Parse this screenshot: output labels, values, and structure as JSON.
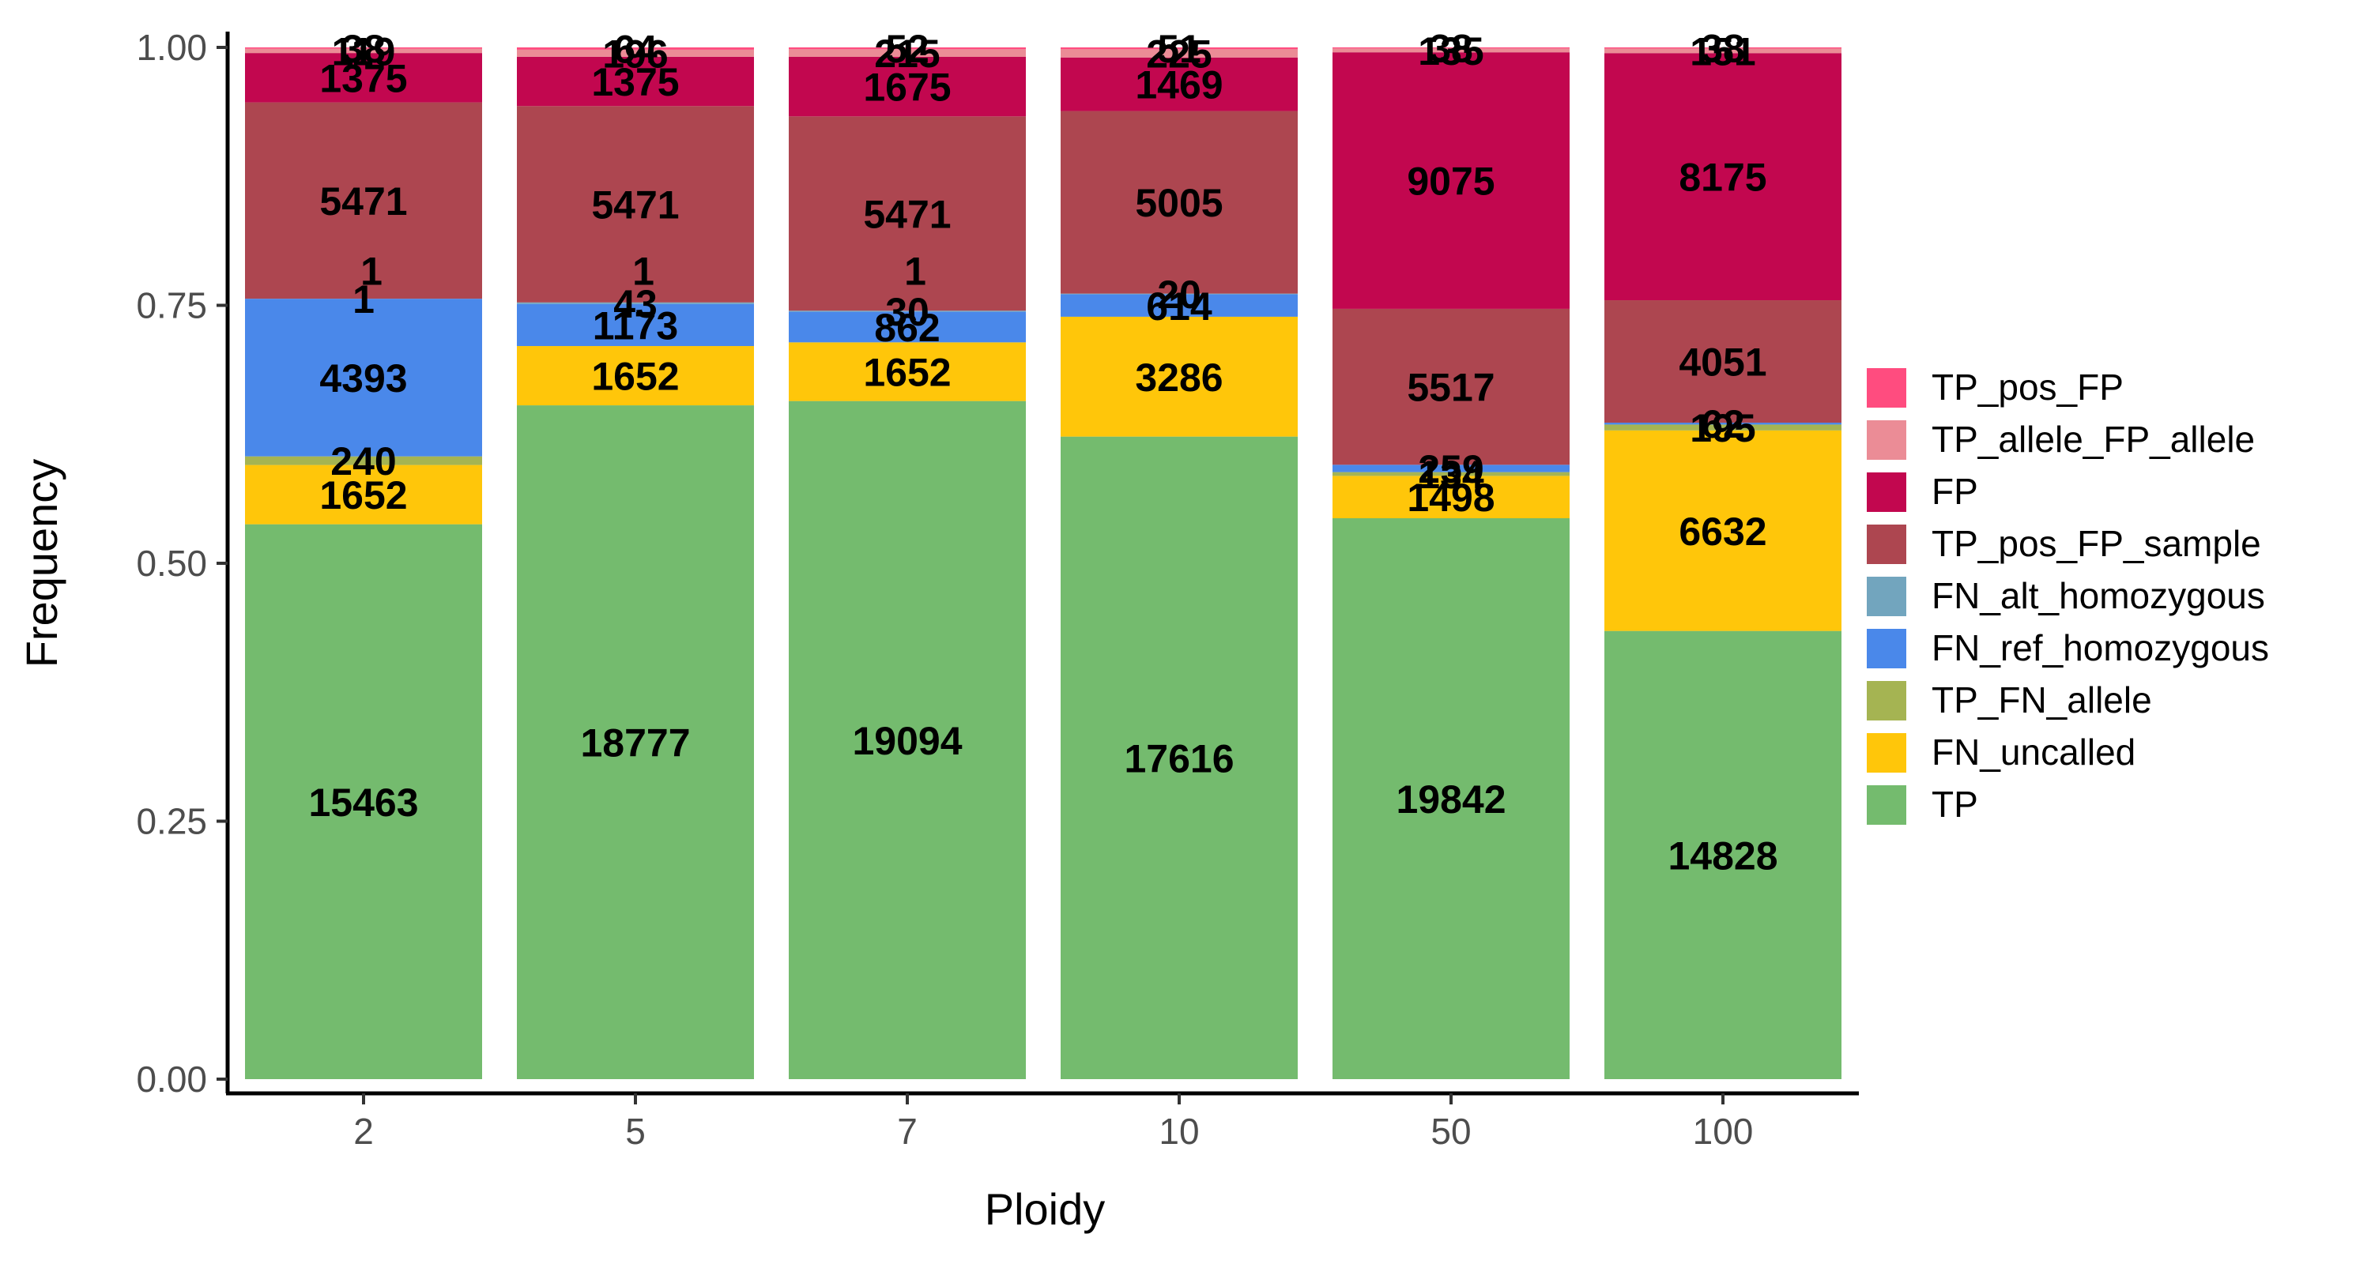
{
  "chart_data": {
    "type": "bar",
    "stacked": true,
    "normalized": true,
    "xlabel": "Ploidy",
    "ylabel": "Frequency",
    "categories": [
      "2",
      "5",
      "7",
      "10",
      "50",
      "100"
    ],
    "ylim": [
      0,
      1
    ],
    "yticks": [
      0.0,
      0.25,
      0.5,
      0.75,
      1.0
    ],
    "ytick_labels": [
      "0.00",
      "0.25",
      "0.50",
      "0.75",
      "1.00"
    ],
    "legend_position": "right",
    "grid": false,
    "series": [
      {
        "name": "TP",
        "color": "#74BB6E",
        "values": [
          15463,
          18777,
          19094,
          17616,
          19842,
          14828
        ],
        "labels": [
          "15463",
          "18777",
          "19094",
          "17616",
          "19842",
          "14828"
        ]
      },
      {
        "name": "FN_uncalled",
        "color": "#FFC60A",
        "values": [
          1652,
          1652,
          1652,
          3286,
          1498,
          6632
        ],
        "labels": [
          "1652",
          "1652",
          "1652",
          "3286",
          "1498",
          "6632"
        ]
      },
      {
        "name": "TP_FN_allele",
        "color": "#A5B452",
        "values": [
          240,
          0,
          0,
          0,
          134,
          195
        ],
        "labels": [
          "240",
          "",
          "",
          "",
          "134",
          "195"
        ]
      },
      {
        "name": "FN_ref_homozygous",
        "color": "#4A88EA",
        "values": [
          4393,
          1173,
          862,
          614,
          259,
          62
        ],
        "labels": [
          "4393",
          "1173",
          "862",
          "614",
          "259",
          "62"
        ]
      },
      {
        "name": "FN_alt_homozygous",
        "color": "#72A5BE",
        "values": [
          1,
          43,
          30,
          20,
          0,
          0
        ],
        "labels": [
          "1",
          "43",
          "30",
          "20",
          "",
          ""
        ]
      },
      {
        "name": "TP_pos_FP_sample",
        "color": "#AD4650",
        "values": [
          5471,
          5471,
          5471,
          5005,
          5517,
          4051
        ],
        "labels": [
          "5471",
          "5471",
          "5471",
          "5005",
          "5517",
          "4051"
        ]
      },
      {
        "name": "FP",
        "color": "#C2074F",
        "values": [
          1375,
          1375,
          1675,
          1469,
          9075,
          8175
        ],
        "labels": [
          "1375",
          "1375",
          "1675",
          "1469",
          "9075",
          "8175"
        ]
      },
      {
        "name": "TP_allele_FP_allele",
        "color": "#EB8C96",
        "values": [
          119,
          196,
          215,
          225,
          135,
          151
        ],
        "labels": [
          "119",
          "196",
          "215",
          "225",
          "135",
          "151"
        ]
      },
      {
        "name": "TP_pos_FP",
        "color": "#FF4C7F",
        "values": [
          38,
          64,
          52,
          51,
          38,
          38
        ],
        "labels": [
          "38",
          "64",
          "52",
          "51",
          "38",
          "38"
        ]
      }
    ],
    "extra_labels": [
      {
        "category": "2",
        "text": "1"
      },
      {
        "category": "5",
        "text": "1"
      },
      {
        "category": "7",
        "text": "1"
      }
    ],
    "legend_order": [
      "TP_pos_FP",
      "TP_allele_FP_allele",
      "FP",
      "TP_pos_FP_sample",
      "FN_alt_homozygous",
      "FN_ref_homozygous",
      "TP_FN_allele",
      "FN_uncalled",
      "TP"
    ]
  }
}
